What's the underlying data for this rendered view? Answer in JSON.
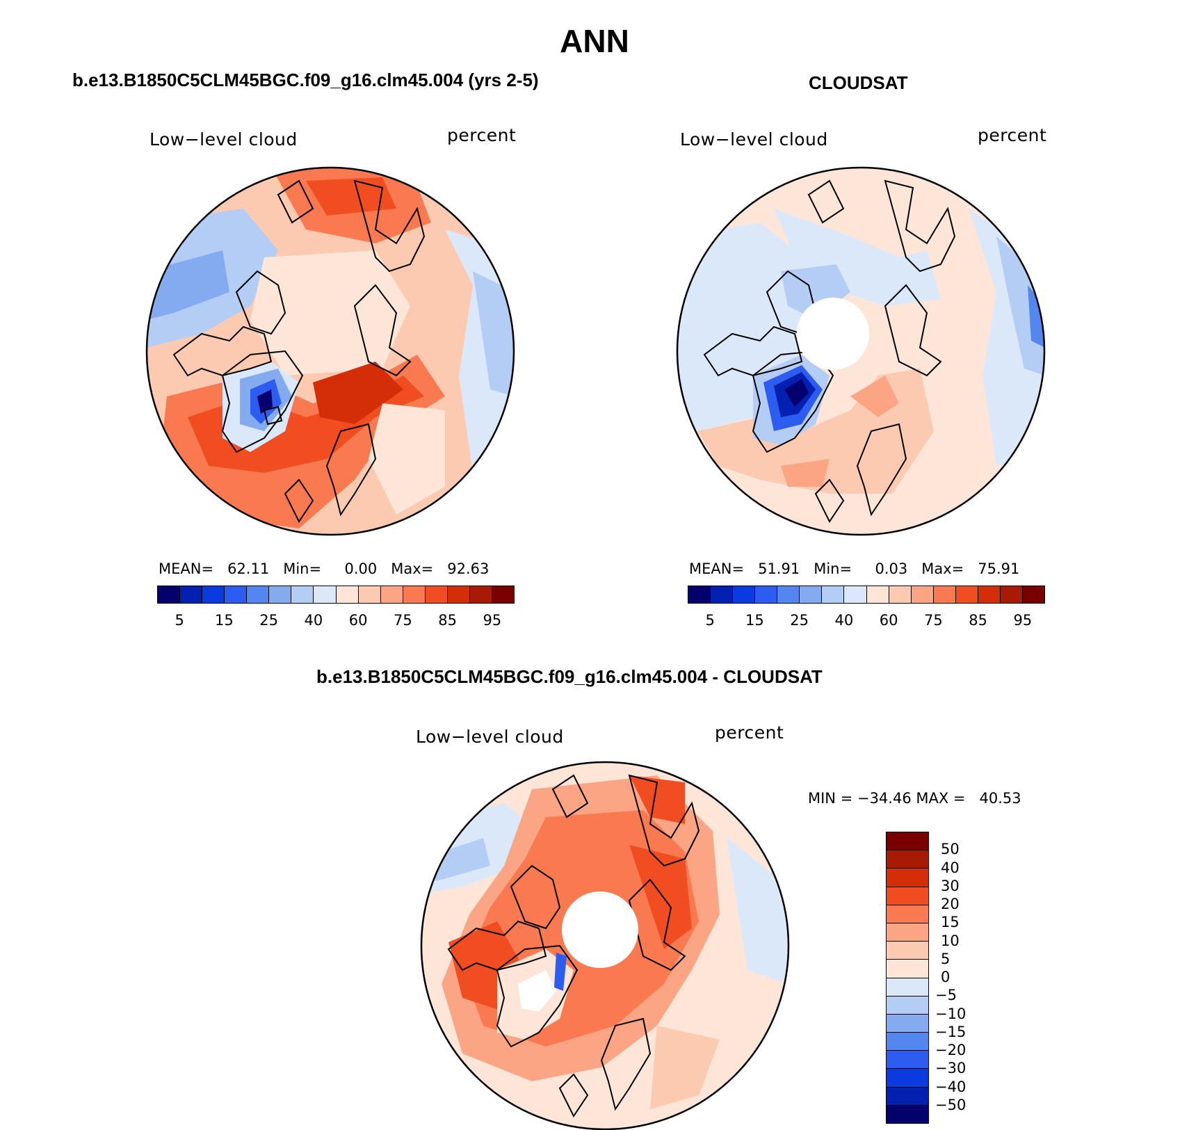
{
  "title": "ANN",
  "colors": {
    "abs_scale": [
      "#04006e",
      "#0420b0",
      "#0a3ae0",
      "#2c5cf0",
      "#5486f0",
      "#84aaf0",
      "#b4cdf5",
      "#dae8fa",
      "#fde6d8",
      "#fccab0",
      "#fba584",
      "#f97a50",
      "#f04e20",
      "#d42e08",
      "#a81a04",
      "#7a0000"
    ],
    "diff_scale": [
      "#7a0000",
      "#a81a04",
      "#d42e08",
      "#f04e20",
      "#f97a50",
      "#fba584",
      "#fccab0",
      "#fde6d8",
      "#dae8fa",
      "#b4cdf5",
      "#84aaf0",
      "#5486f0",
      "#2c5cf0",
      "#0a3ae0",
      "#0420b0",
      "#04006e"
    ]
  },
  "panels": [
    {
      "title": "b.e13.B1850C5CLM45BGC.f09_g16.clm45.004 (yrs 2-5)",
      "left_label": "Low−level cloud",
      "right_label": "percent",
      "stats": "MEAN=   62.11   Min=     0.00   Max=   92.63",
      "colorbar_ticks": [
        "5",
        "15",
        "25",
        "40",
        "60",
        "75",
        "85",
        "95"
      ]
    },
    {
      "title": "CLOUDSAT",
      "left_label": "Low−level cloud",
      "right_label": "percent",
      "stats": "MEAN=   51.91   Min=     0.03   Max=   75.91",
      "colorbar_ticks": [
        "5",
        "15",
        "25",
        "40",
        "60",
        "75",
        "85",
        "95"
      ]
    },
    {
      "title": "b.e13.B1850C5CLM45BGC.f09_g16.clm45.004 - CLOUDSAT",
      "left_label": "Low−level cloud",
      "right_label": "percent",
      "stats": "MIN = −34.46 MAX =   40.53",
      "colorbar_ticks": [
        "50",
        "40",
        "30",
        "20",
        "15",
        "10",
        "5",
        "0",
        "−5",
        "−10",
        "−15",
        "−20",
        "−30",
        "−40",
        "−50"
      ]
    }
  ]
}
